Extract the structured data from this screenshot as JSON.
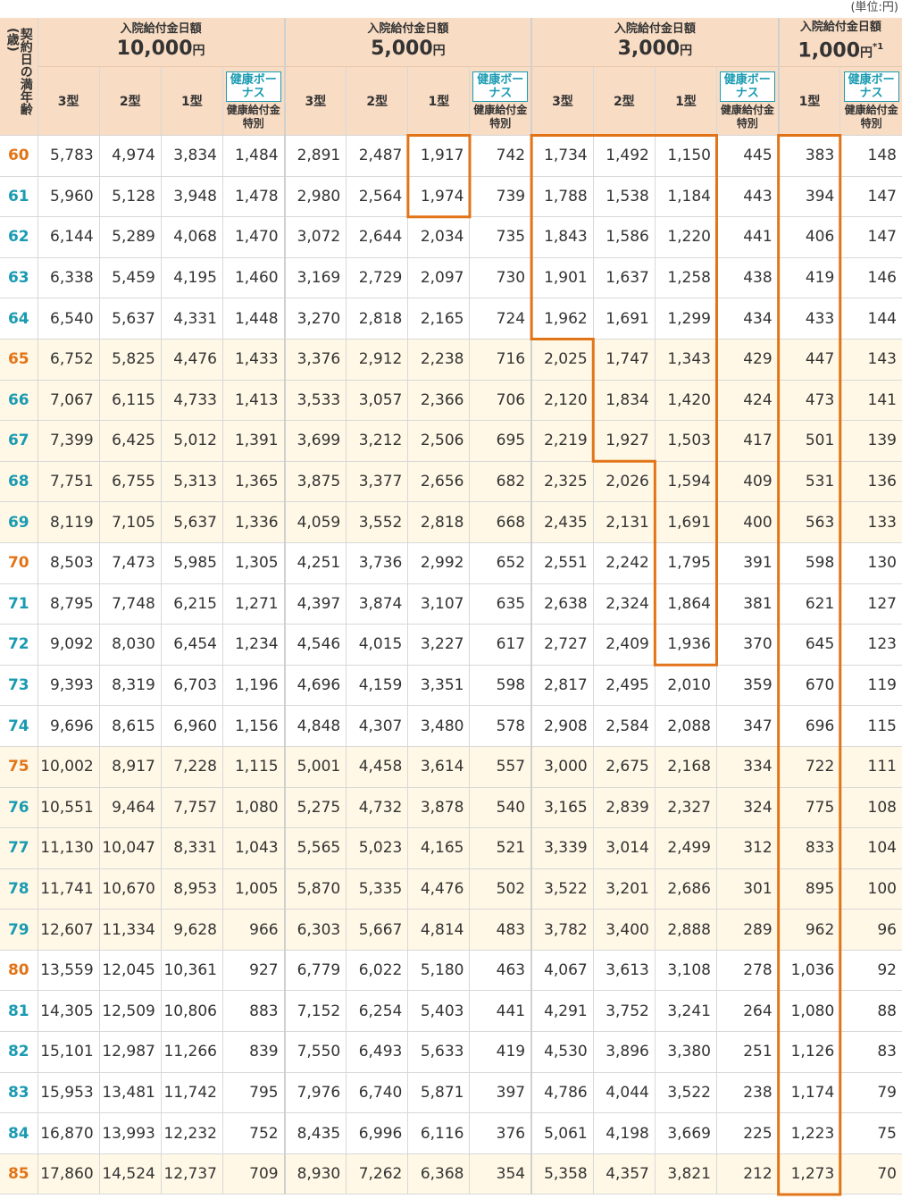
{
  "unit_note": "(単位:円)",
  "age_header": "契約日の満年齢(歳)",
  "groups": [
    {
      "label": "入院給付金日額",
      "amount": "10,000",
      "yen": "円",
      "note": ""
    },
    {
      "label": "入院給付金日額",
      "amount": "5,000",
      "yen": "円",
      "note": ""
    },
    {
      "label": "入院給付金日額",
      "amount": "3,000",
      "yen": "円",
      "note": ""
    },
    {
      "label": "入院給付金日額",
      "amount": "1,000",
      "yen": "円",
      "note": "*1"
    }
  ],
  "type_labels": {
    "t3": "3型",
    "t2": "2型",
    "t1": "1型"
  },
  "bonus_label": "健康ボーナス",
  "bonus_sub": "健康給付金特別",
  "colors": {
    "teal": "#1a9bb2",
    "orange": "#e27418",
    "header_bg": "#f8dcc4",
    "band": "#fff8e6",
    "highlight": "#e27418"
  },
  "rows": [
    {
      "age": "60",
      "v": [
        "5,783",
        "4,974",
        "3,834",
        "1,484",
        "2,891",
        "2,487",
        "1,917",
        "742",
        "1,734",
        "1,492",
        "1,150",
        "445",
        "383",
        "148"
      ]
    },
    {
      "age": "61",
      "v": [
        "5,960",
        "5,128",
        "3,948",
        "1,478",
        "2,980",
        "2,564",
        "1,974",
        "739",
        "1,788",
        "1,538",
        "1,184",
        "443",
        "394",
        "147"
      ]
    },
    {
      "age": "62",
      "v": [
        "6,144",
        "5,289",
        "4,068",
        "1,470",
        "3,072",
        "2,644",
        "2,034",
        "735",
        "1,843",
        "1,586",
        "1,220",
        "441",
        "406",
        "147"
      ]
    },
    {
      "age": "63",
      "v": [
        "6,338",
        "5,459",
        "4,195",
        "1,460",
        "3,169",
        "2,729",
        "2,097",
        "730",
        "1,901",
        "1,637",
        "1,258",
        "438",
        "419",
        "146"
      ]
    },
    {
      "age": "64",
      "v": [
        "6,540",
        "5,637",
        "4,331",
        "1,448",
        "3,270",
        "2,818",
        "2,165",
        "724",
        "1,962",
        "1,691",
        "1,299",
        "434",
        "433",
        "144"
      ]
    },
    {
      "age": "65",
      "v": [
        "6,752",
        "5,825",
        "4,476",
        "1,433",
        "3,376",
        "2,912",
        "2,238",
        "716",
        "2,025",
        "1,747",
        "1,343",
        "429",
        "447",
        "143"
      ]
    },
    {
      "age": "66",
      "v": [
        "7,067",
        "6,115",
        "4,733",
        "1,413",
        "3,533",
        "3,057",
        "2,366",
        "706",
        "2,120",
        "1,834",
        "1,420",
        "424",
        "473",
        "141"
      ]
    },
    {
      "age": "67",
      "v": [
        "7,399",
        "6,425",
        "5,012",
        "1,391",
        "3,699",
        "3,212",
        "2,506",
        "695",
        "2,219",
        "1,927",
        "1,503",
        "417",
        "501",
        "139"
      ]
    },
    {
      "age": "68",
      "v": [
        "7,751",
        "6,755",
        "5,313",
        "1,365",
        "3,875",
        "3,377",
        "2,656",
        "682",
        "2,325",
        "2,026",
        "1,594",
        "409",
        "531",
        "136"
      ]
    },
    {
      "age": "69",
      "v": [
        "8,119",
        "7,105",
        "5,637",
        "1,336",
        "4,059",
        "3,552",
        "2,818",
        "668",
        "2,435",
        "2,131",
        "1,691",
        "400",
        "563",
        "133"
      ]
    },
    {
      "age": "70",
      "v": [
        "8,503",
        "7,473",
        "5,985",
        "1,305",
        "4,251",
        "3,736",
        "2,992",
        "652",
        "2,551",
        "2,242",
        "1,795",
        "391",
        "598",
        "130"
      ]
    },
    {
      "age": "71",
      "v": [
        "8,795",
        "7,748",
        "6,215",
        "1,271",
        "4,397",
        "3,874",
        "3,107",
        "635",
        "2,638",
        "2,324",
        "1,864",
        "381",
        "621",
        "127"
      ]
    },
    {
      "age": "72",
      "v": [
        "9,092",
        "8,030",
        "6,454",
        "1,234",
        "4,546",
        "4,015",
        "3,227",
        "617",
        "2,727",
        "2,409",
        "1,936",
        "370",
        "645",
        "123"
      ]
    },
    {
      "age": "73",
      "v": [
        "9,393",
        "8,319",
        "6,703",
        "1,196",
        "4,696",
        "4,159",
        "3,351",
        "598",
        "2,817",
        "2,495",
        "2,010",
        "359",
        "670",
        "119"
      ]
    },
    {
      "age": "74",
      "v": [
        "9,696",
        "8,615",
        "6,960",
        "1,156",
        "4,848",
        "4,307",
        "3,480",
        "578",
        "2,908",
        "2,584",
        "2,088",
        "347",
        "696",
        "115"
      ]
    },
    {
      "age": "75",
      "v": [
        "10,002",
        "8,917",
        "7,228",
        "1,115",
        "5,001",
        "4,458",
        "3,614",
        "557",
        "3,000",
        "2,675",
        "2,168",
        "334",
        "722",
        "111"
      ]
    },
    {
      "age": "76",
      "v": [
        "10,551",
        "9,464",
        "7,757",
        "1,080",
        "5,275",
        "4,732",
        "3,878",
        "540",
        "3,165",
        "2,839",
        "2,327",
        "324",
        "775",
        "108"
      ]
    },
    {
      "age": "77",
      "v": [
        "11,130",
        "10,047",
        "8,331",
        "1,043",
        "5,565",
        "5,023",
        "4,165",
        "521",
        "3,339",
        "3,014",
        "2,499",
        "312",
        "833",
        "104"
      ]
    },
    {
      "age": "78",
      "v": [
        "11,741",
        "10,670",
        "8,953",
        "1,005",
        "5,870",
        "5,335",
        "4,476",
        "502",
        "3,522",
        "3,201",
        "2,686",
        "301",
        "895",
        "100"
      ]
    },
    {
      "age": "79",
      "v": [
        "12,607",
        "11,334",
        "9,628",
        "966",
        "6,303",
        "5,667",
        "4,814",
        "483",
        "3,782",
        "3,400",
        "2,888",
        "289",
        "962",
        "96"
      ]
    },
    {
      "age": "80",
      "v": [
        "13,559",
        "12,045",
        "10,361",
        "927",
        "6,779",
        "6,022",
        "5,180",
        "463",
        "4,067",
        "3,613",
        "3,108",
        "278",
        "1,036",
        "92"
      ]
    },
    {
      "age": "81",
      "v": [
        "14,305",
        "12,509",
        "10,806",
        "883",
        "7,152",
        "6,254",
        "5,403",
        "441",
        "4,291",
        "3,752",
        "3,241",
        "264",
        "1,080",
        "88"
      ]
    },
    {
      "age": "82",
      "v": [
        "15,101",
        "12,987",
        "11,266",
        "839",
        "7,550",
        "6,493",
        "5,633",
        "419",
        "4,530",
        "3,896",
        "3,380",
        "251",
        "1,126",
        "83"
      ]
    },
    {
      "age": "83",
      "v": [
        "15,953",
        "13,481",
        "11,742",
        "795",
        "7,976",
        "6,740",
        "5,871",
        "397",
        "4,786",
        "4,044",
        "3,522",
        "238",
        "1,174",
        "79"
      ]
    },
    {
      "age": "84",
      "v": [
        "16,870",
        "13,993",
        "12,232",
        "752",
        "8,435",
        "6,996",
        "6,116",
        "376",
        "5,061",
        "4,198",
        "3,669",
        "225",
        "1,223",
        "75"
      ]
    },
    {
      "age": "85",
      "v": [
        "17,860",
        "14,524",
        "12,737",
        "709",
        "8,930",
        "7,262",
        "6,368",
        "354",
        "5,358",
        "4,357",
        "3,821",
        "212",
        "1,273",
        "70"
      ]
    }
  ]
}
